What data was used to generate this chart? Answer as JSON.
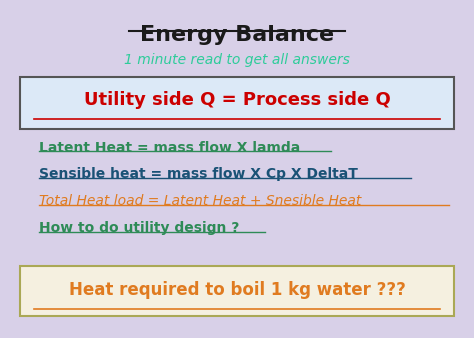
{
  "title": "Energy Balance",
  "subtitle": "1 minute read to get all answers",
  "subtitle_color": "#2ecc9a",
  "title_color": "#1a1a1a",
  "background_color": "#d8d0e8",
  "box1_text": "Utility side Q = Process side Q",
  "box1_color": "#cc0000",
  "box1_bg": "#dce9f7",
  "box1_edge": "#555555",
  "line1_text": "Latent Heat = mass flow X lamda",
  "line1_color": "#2e8b57",
  "line2_text": "Sensible heat = mass flow X Cp X DeltaT",
  "line2_color": "#1a5276",
  "line3_text": "Total Heat load = Latent Heat + Snesible Heat",
  "line3_color": "#e07b20",
  "line4_text": "How to do utility design ?",
  "line4_color": "#2e8b57",
  "box2_text": "Heat required to boil 1 kg water ???",
  "box2_color": "#e07b20",
  "box2_bg": "#f5f0e0",
  "box2_edge": "#aaa855"
}
